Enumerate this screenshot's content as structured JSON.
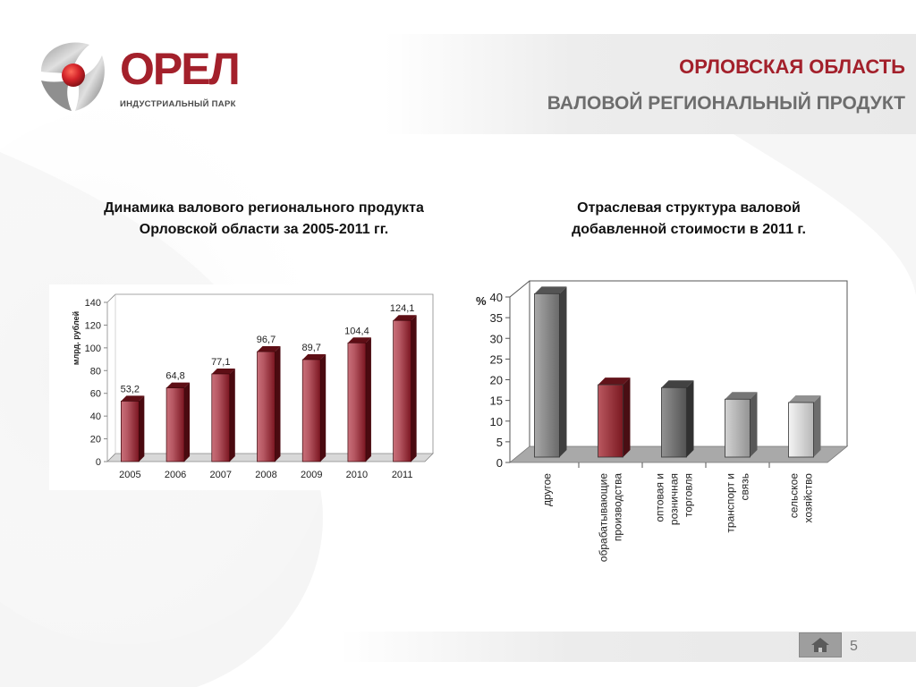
{
  "header": {
    "logo_word": "ОРЕЛ",
    "logo_sub": "ИНДУСТРИАЛЬНЫЙ ПАРК",
    "region_title": "ОРЛОВСКАЯ ОБЛАСТЬ",
    "subject_title": "ВАЛОВОЙ РЕГИОНАЛЬНЫЙ ПРОДУКТ"
  },
  "left_title": {
    "line1": "Динамика валового регионального продукта",
    "line2": "Орловской области за 2005-2011 гг."
  },
  "right_title": {
    "line1": "Отраслевая структура валовой",
    "line2": "добавленной стоимости в 2011 г."
  },
  "footer": {
    "page_number": "5",
    "home_icon": "home-icon"
  },
  "colors": {
    "accent": "#a3202b",
    "bar_dark_red": "#7a1520",
    "bar_light_red": "#c9707a"
  },
  "chart_data": [
    {
      "type": "bar",
      "ylabel": "млрд. рублей",
      "ylim": [
        0,
        140
      ],
      "yticks": [
        "0",
        "20",
        "40",
        "60",
        "80",
        "100",
        "120",
        "140"
      ],
      "categories": [
        "2005",
        "2006",
        "2007",
        "2008",
        "2009",
        "2010",
        "2011"
      ],
      "values": [
        53.2,
        64.8,
        77.1,
        96.7,
        89.7,
        104.4,
        124.1
      ],
      "value_labels": [
        "53,2",
        "64,8",
        "77,1",
        "96,7",
        "89,7",
        "104,4",
        "124,1"
      ],
      "grid": false
    },
    {
      "type": "bar",
      "ylabel": "%",
      "ylim": [
        0,
        40
      ],
      "yticks": [
        "0",
        "5",
        "10",
        "15",
        "20",
        "25",
        "30",
        "35",
        "40"
      ],
      "categories": [
        [
          "другое"
        ],
        [
          "обрабатывающие",
          "производства"
        ],
        [
          "оптовая и",
          "розничная",
          "торговля"
        ],
        [
          "транспорт и",
          "связь"
        ],
        [
          "сельское",
          "хозяйство"
        ]
      ],
      "values": [
        39.5,
        17.5,
        16.8,
        14,
        13.2
      ],
      "bar_colors": [
        "#8c8c8c",
        "#a3202b",
        "#6e6e6e",
        "#c4c4c4",
        "#f2f2f2"
      ],
      "grid": false
    }
  ]
}
